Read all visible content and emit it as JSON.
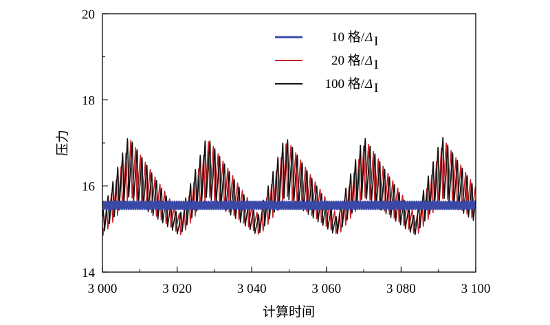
{
  "chart_data": {
    "type": "line",
    "title": "",
    "xlabel": "计算时间",
    "ylabel": "压力",
    "xlim": [
      3000,
      3100
    ],
    "ylim": [
      14,
      20
    ],
    "x_ticks": [
      3000,
      3020,
      3040,
      3060,
      3080,
      3100
    ],
    "x_tick_labels": [
      "3 000",
      "3 020",
      "3 040",
      "3 060",
      "3 080",
      "3 100"
    ],
    "y_ticks": [
      14,
      16,
      18,
      20
    ],
    "y_tick_labels": [
      "14",
      "16",
      "18",
      "20"
    ],
    "grid": false,
    "legend_position": "top-right",
    "oscillation_period": 21,
    "series": [
      {
        "name": "10 格/",
        "name_symbol": "Δ",
        "name_sub": "I",
        "color": "#3a49a8",
        "style": "band",
        "mean": 15.55,
        "amplitude": 0.11
      },
      {
        "name": "20 格/",
        "name_symbol": "Δ",
        "name_sub": "I",
        "color": "#cc2027",
        "style": "sawtooth",
        "max": 17.1,
        "min": 14.6
      },
      {
        "name": "100 格/",
        "name_symbol": "Δ",
        "name_sub": "I",
        "color": "#111111",
        "style": "sawtooth",
        "max": 17.2,
        "min": 14.6
      }
    ]
  }
}
